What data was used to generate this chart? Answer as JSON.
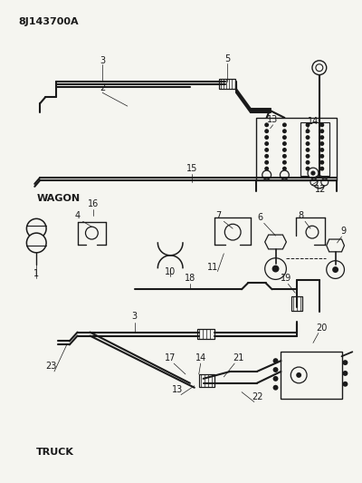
{
  "title_code": "8J143700A",
  "bg": "#f5f5f0",
  "lc": "#1a1a1a",
  "fs": 7,
  "title_fs": 8
}
